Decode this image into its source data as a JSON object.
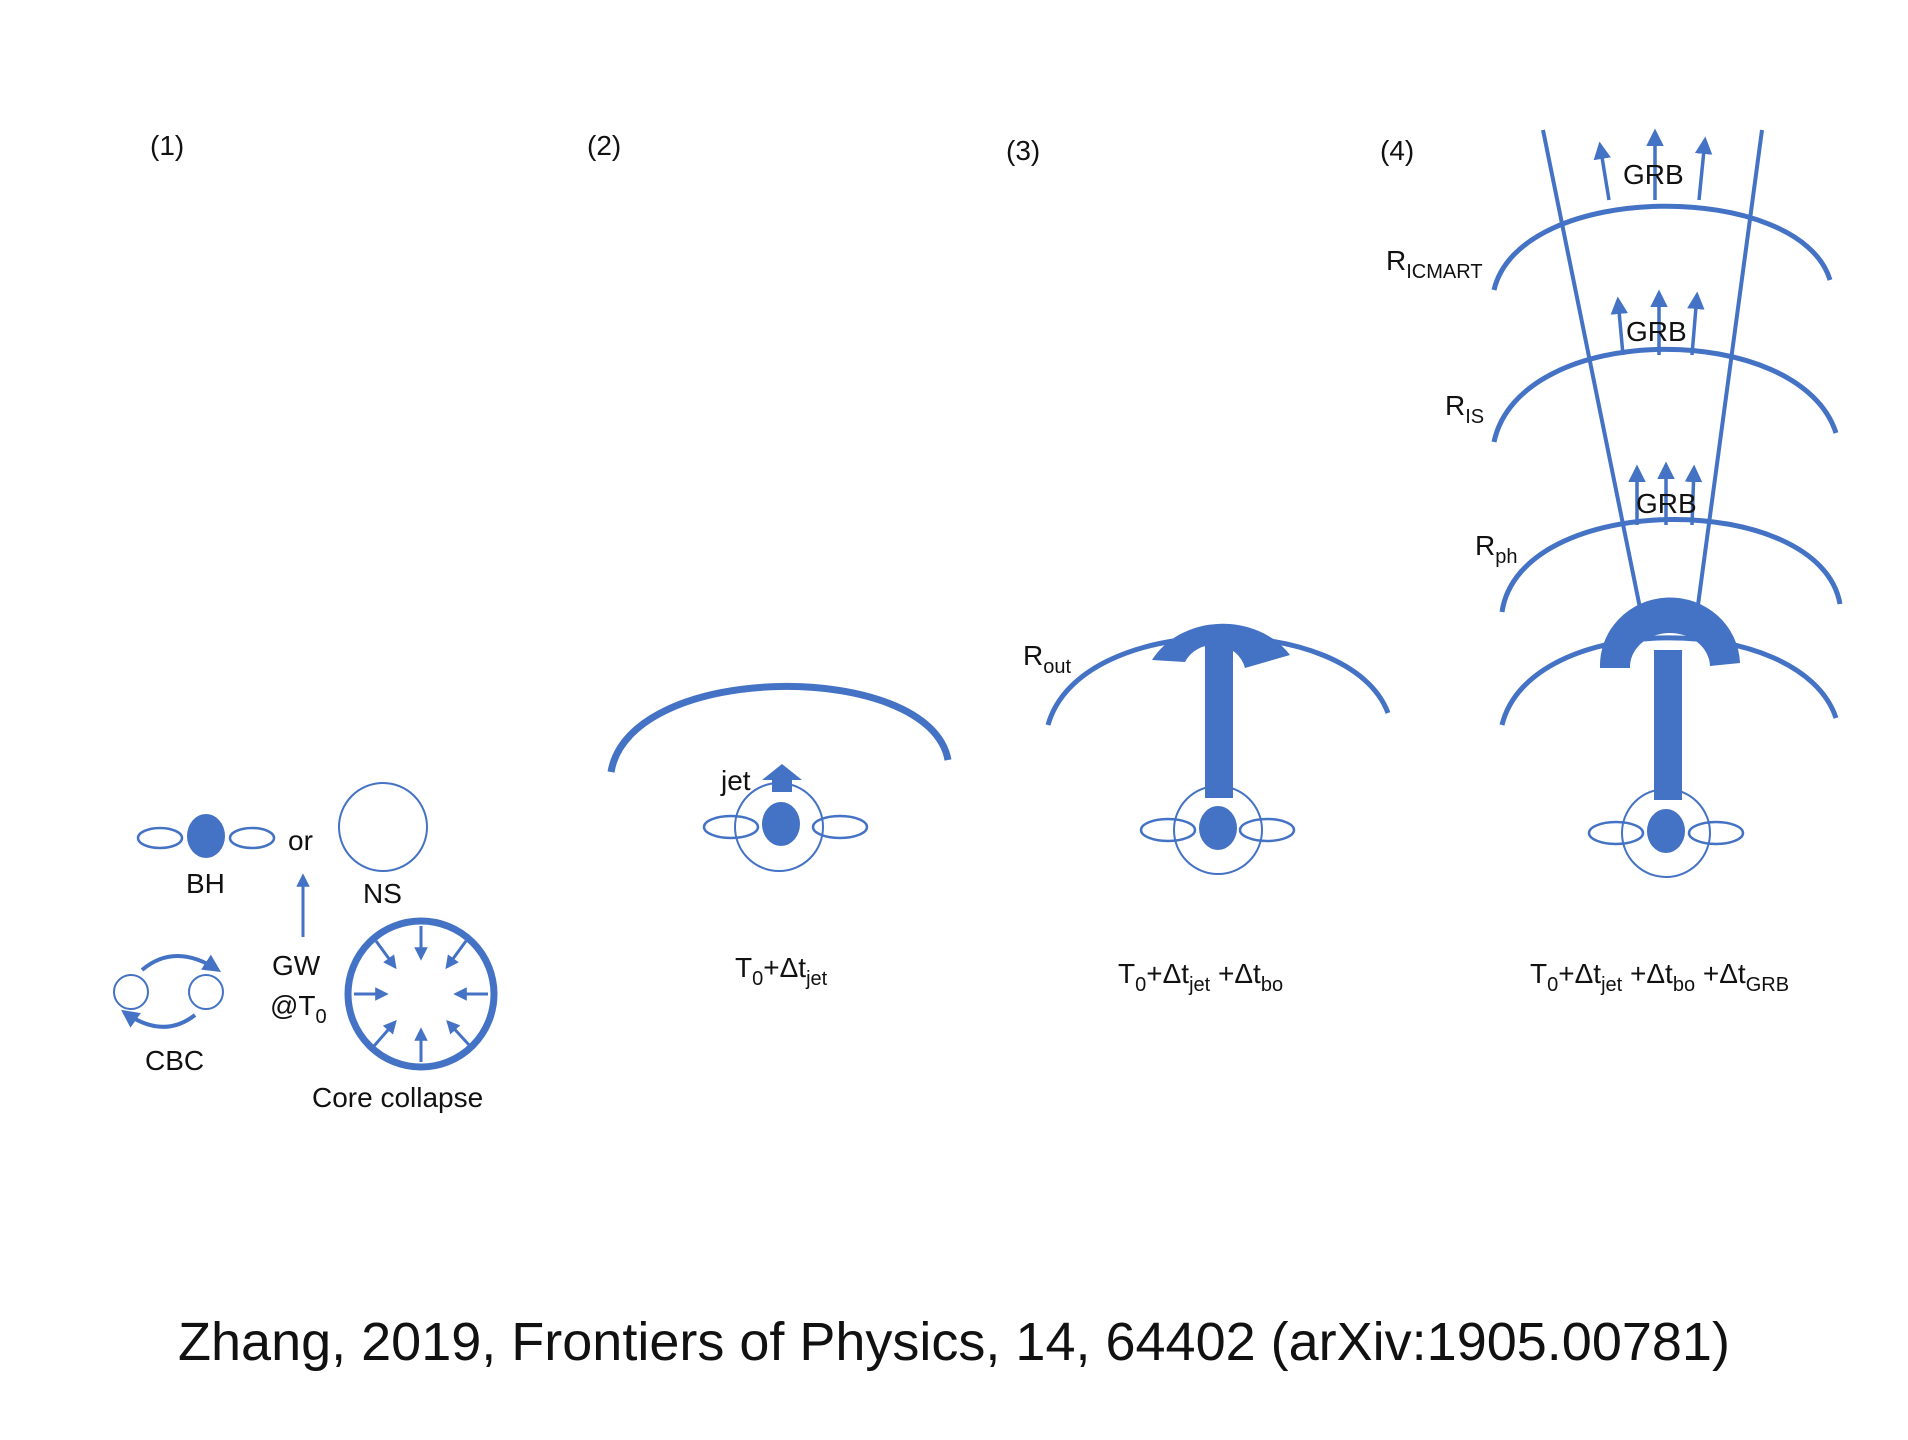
{
  "colors": {
    "accent": "#4472C4",
    "text": "#111111",
    "background": "#FFFFFF"
  },
  "panels": {
    "p1": {
      "number": "(1)",
      "bh": "BH",
      "or": "or",
      "ns": "NS",
      "gw": "GW",
      "gw_time": {
        "at": "@T",
        "sub": "0"
      },
      "cbc": "CBC",
      "core_collapse": "Core collapse"
    },
    "p2": {
      "number": "(2)",
      "jet": "jet",
      "time": {
        "t0": "T",
        "t0_sub": "0",
        "d1": "+Δt",
        "d1_sub": "jet"
      }
    },
    "p3": {
      "number": "(3)",
      "r_out": {
        "main": "R",
        "sub": "out"
      },
      "time": {
        "t0": "T",
        "t0_sub": "0",
        "d1": "+Δt",
        "d1_sub": "jet",
        "d2": " +Δt",
        "d2_sub": "bo"
      }
    },
    "p4": {
      "number": "(4)",
      "r_icmart": {
        "main": "R",
        "sub": "ICMART"
      },
      "r_is": {
        "main": "R",
        "sub": "IS"
      },
      "r_ph": {
        "main": "R",
        "sub": "ph"
      },
      "grb_top": "GRB",
      "grb_mid": "GRB",
      "grb_low": "GRB",
      "time": {
        "t0": "T",
        "t0_sub": "0",
        "d1": "+Δt",
        "d1_sub": "jet",
        "d2": " +Δt",
        "d2_sub": "bo",
        "d3": " +Δt",
        "d3_sub": "GRB"
      }
    }
  },
  "citation": "Zhang, 2019, Frontiers of Physics, 14, 64402 (arXiv:1905.00781)"
}
